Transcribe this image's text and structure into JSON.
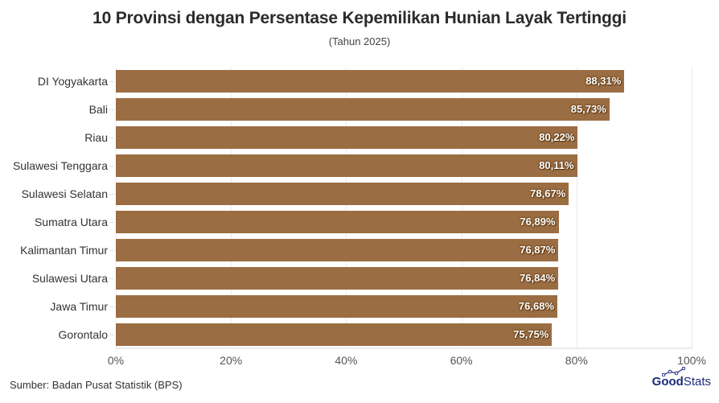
{
  "header": {
    "title": "10 Provinsi dengan Persentase Kepemilikan Hunian Layak Tertinggi",
    "subtitle": "(Tahun 2025)"
  },
  "footer": {
    "source": "Sumber: Badan Pusat Statistik (BPS)",
    "logo_bold": "Good",
    "logo_light": "Stats"
  },
  "colors": {
    "bar": "#9b6d42",
    "grid": "#ececec",
    "logo": "#1e2a78"
  },
  "chart_data": {
    "type": "bar",
    "orientation": "horizontal",
    "title": "10 Provinsi dengan Persentase Kepemilikan Hunian Layak Tertinggi",
    "subtitle": "(Tahun 2025)",
    "xlabel": "",
    "ylabel": "",
    "xlim": [
      0,
      100
    ],
    "grid": true,
    "legend": null,
    "categories": [
      "DI Yogyakarta",
      "Bali",
      "Riau",
      "Sulawesi Tenggara",
      "Sulawesi Selatan",
      "Sumatra Utara",
      "Kalimantan Timur",
      "Sulawesi Utara",
      "Jawa Timur",
      "Gorontalo"
    ],
    "values": [
      88.31,
      85.73,
      80.22,
      80.11,
      78.67,
      76.89,
      76.87,
      76.84,
      76.68,
      75.75
    ],
    "value_labels": [
      "88,31%",
      "85,73%",
      "80,22%",
      "80,11%",
      "78,67%",
      "76,89%",
      "76,87%",
      "76,84%",
      "76,68%",
      "75,75%"
    ],
    "x_ticks": [
      "0%",
      "20%",
      "40%",
      "60%",
      "80%",
      "100%"
    ],
    "source": "Sumber: Badan Pusat Statistik (BPS)"
  }
}
